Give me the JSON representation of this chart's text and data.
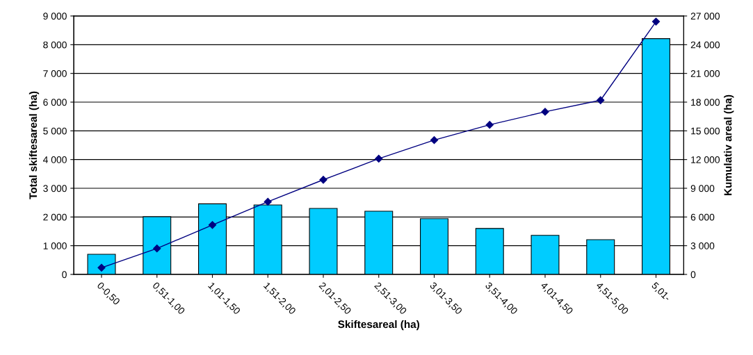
{
  "chart_data": {
    "type": "bar",
    "xlabel": "Skiftesareal (ha)",
    "ylabel": "Total skiftesareal (ha)",
    "y2label": "Kumulativ areal (ha)",
    "categories": [
      "0-0,50",
      "0,51-1,00",
      "1,01-1,50",
      "1,51-2,00",
      "2,01-2,50",
      "2,51-3,00",
      "3,01-3,50",
      "3,51-4,00",
      "4,01-4,50",
      "4,51-5,00",
      "5,01-"
    ],
    "series": [
      {
        "color": "#00ccff",
        "values": [
          700,
          2010,
          2460,
          2420,
          2300,
          2200,
          1940,
          1600,
          1360,
          1210,
          8210
        ]
      },
      {
        "type": "line",
        "axis": "y2",
        "color": "#000080",
        "marker": "diamond",
        "line_style": "solid",
        "values": [
          700,
          2710,
          5170,
          7590,
          9890,
          12090,
          14030,
          15630,
          16990,
          18200,
          26410
        ]
      }
    ],
    "ylim": [
      0,
      9000
    ],
    "yticks": [
      {
        "value": 0,
        "label": "0"
      },
      {
        "value": 1000,
        "label": "1 000"
      },
      {
        "value": 2000,
        "label": "2 000"
      },
      {
        "value": 3000,
        "label": "3 000"
      },
      {
        "value": 4000,
        "label": "4 000"
      },
      {
        "value": 5000,
        "label": "5 000"
      },
      {
        "value": 6000,
        "label": "6 000"
      },
      {
        "value": 7000,
        "label": "7 000"
      },
      {
        "value": 8000,
        "label": "8 000"
      },
      {
        "value": 9000,
        "label": "9 000"
      }
    ],
    "y2lim": [
      0,
      27000
    ],
    "y2ticks": [
      {
        "value": 0,
        "label": "0"
      },
      {
        "value": 3000,
        "label": "3 000"
      },
      {
        "value": 6000,
        "label": "6 000"
      },
      {
        "value": 9000,
        "label": "9 000"
      },
      {
        "value": 12000,
        "label": "12 000"
      },
      {
        "value": 15000,
        "label": "15 000"
      },
      {
        "value": 18000,
        "label": "18 000"
      },
      {
        "value": 21000,
        "label": "21 000"
      },
      {
        "value": 24000,
        "label": "24 000"
      },
      {
        "value": 27000,
        "label": "27 000"
      }
    ],
    "grid": "y"
  }
}
